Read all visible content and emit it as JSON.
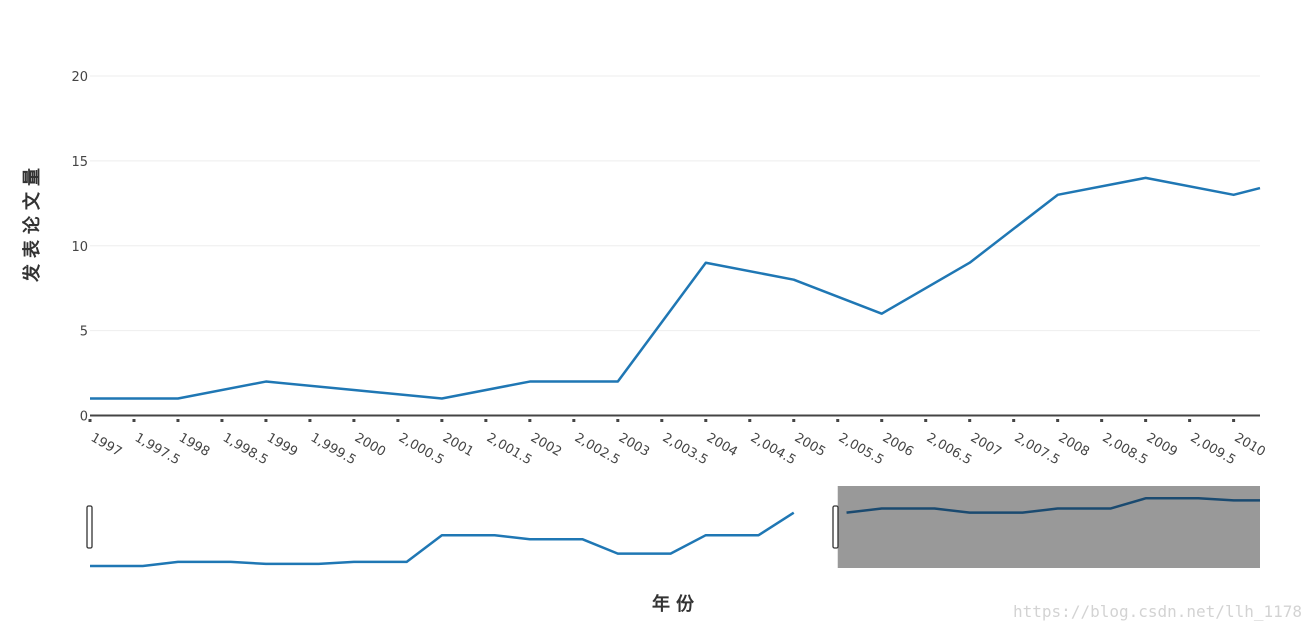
{
  "chart_data": {
    "type": "line",
    "xlabel": "年份",
    "ylabel": "发表论文量",
    "x": [
      1997,
      1998,
      1999,
      2000,
      2001,
      2002,
      2003,
      2004,
      2005,
      2006,
      2007,
      2008,
      2009,
      2010,
      2010.3
    ],
    "series": [
      {
        "values": [
          1,
          1,
          2,
          1.5,
          1,
          2,
          2,
          9,
          8,
          6,
          9,
          13,
          14,
          13,
          13.4
        ]
      }
    ],
    "xlim": [
      1997,
      2010.3
    ],
    "ylim": [
      0,
      20
    ],
    "x_ticks": [
      "1997",
      "1,997.5",
      "1998",
      "1,998.5",
      "1999",
      "1,999.5",
      "2000",
      "2,000.5",
      "2001",
      "2,001.5",
      "2002",
      "2,002.5",
      "2003",
      "2,003.5",
      "2004",
      "2,004.5",
      "2005",
      "2,005.5",
      "2006",
      "2,006.5",
      "2007",
      "2,007.5",
      "2008",
      "2,008.5",
      "2009",
      "2,009.5",
      "2010"
    ],
    "y_ticks": [
      "0",
      "5",
      "10",
      "15",
      "20"
    ],
    "grid": true,
    "line_color": "#1f77b4",
    "range_slider": {
      "x": [
        1997,
        1997.6,
        1998,
        1998.6,
        1999,
        1999.6,
        2000,
        2000.6,
        2001,
        2001.6,
        2002,
        2002.6,
        2003,
        2003.6,
        2004,
        2004.6,
        2005,
        2005.6,
        2006,
        2006.6,
        2007,
        2007.6,
        2008,
        2008.6,
        2009,
        2009.6,
        2010,
        2010.3
      ],
      "values": [
        0.5,
        0.5,
        1.5,
        1.5,
        1,
        1,
        1.5,
        1.5,
        8,
        8,
        7,
        7,
        3.5,
        3.5,
        8,
        8,
        13.5,
        13.5,
        14.5,
        14.5,
        13.5,
        13.5,
        14.5,
        14.5,
        17,
        17,
        16.5,
        16.5
      ],
      "selected_from": 2005.5,
      "selected_to": 2010.3,
      "mask_color": "#999999",
      "selected_line_color": "#1a4a70"
    }
  },
  "watermark": "https://blog.csdn.net/llh_1178"
}
